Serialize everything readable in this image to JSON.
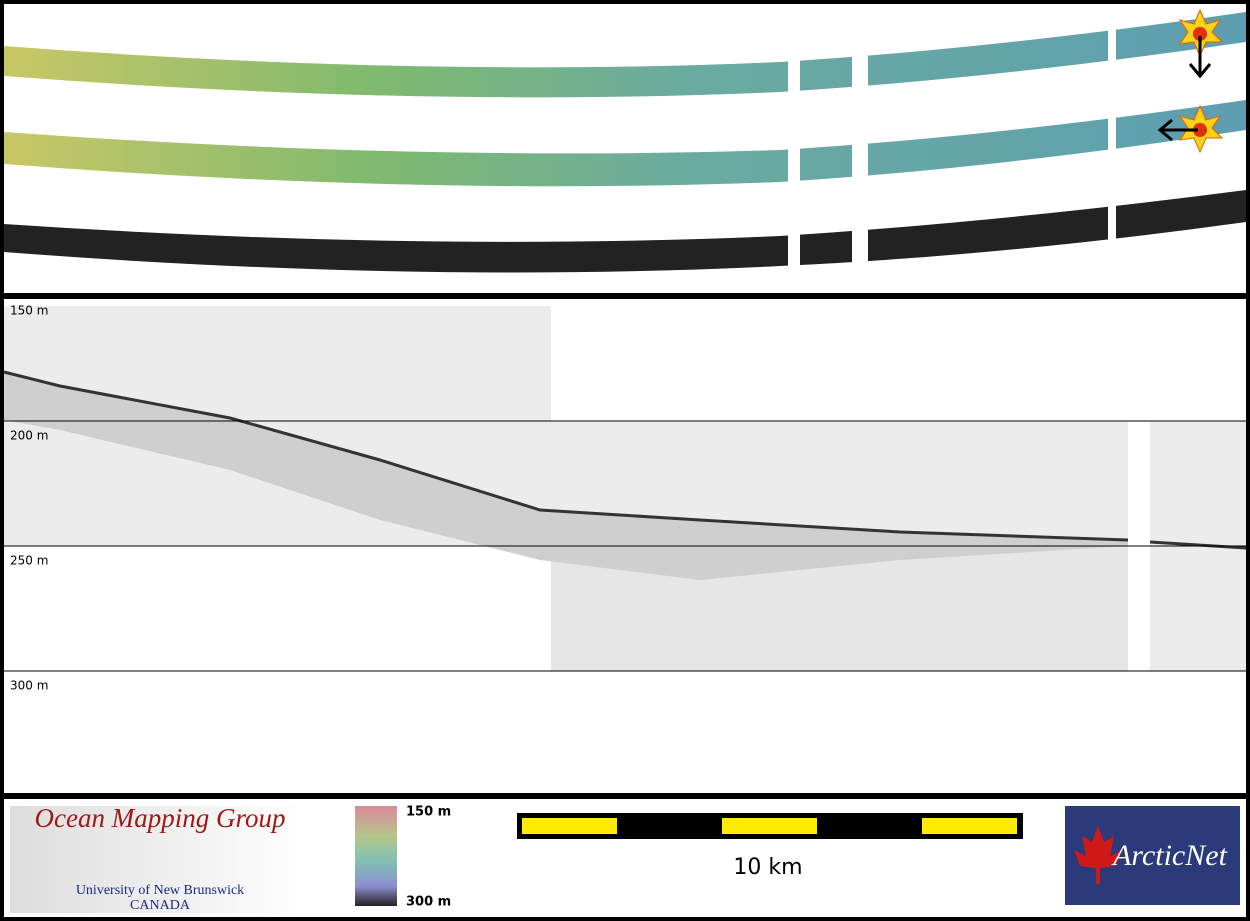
{
  "profile": {
    "depth_labels": [
      "150 m",
      "200 m",
      "250 m",
      "300 m"
    ]
  },
  "footer": {
    "logo": {
      "title": "Ocean Mapping Group",
      "subtitle": "University of New Brunswick",
      "country": "CANADA"
    },
    "colorbar": {
      "top_label": "150 m",
      "bottom_label": "300 m"
    },
    "scale_bar": {
      "label": "10 km"
    },
    "partner_logo": {
      "label": "ArcticNet"
    }
  }
}
